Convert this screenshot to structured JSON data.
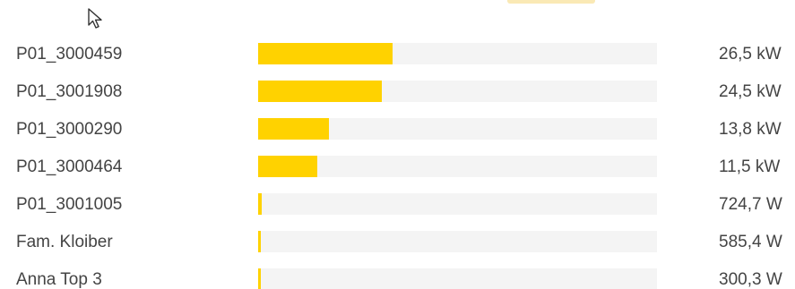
{
  "colors": {
    "bar_fill": "#ffd200",
    "bar_track": "#f4f4f4",
    "text": "#444444"
  },
  "items": [
    {
      "name": "P01_3000459",
      "power": "26,5 kW",
      "level": 0.338
    },
    {
      "name": "P01_3001908",
      "power": "24,5 kW",
      "level": 0.31
    },
    {
      "name": "P01_3000290",
      "power": "13,8 kW",
      "level": 0.178
    },
    {
      "name": "P01_3000464",
      "power": "11,5 kW",
      "level": 0.148
    },
    {
      "name": "P01_3001005",
      "power": "724,7 W",
      "level": 0.009
    },
    {
      "name": "Fam. Kloiber",
      "power": "585,4 W",
      "level": 0.007
    },
    {
      "name": "Anna Top 3",
      "power": "300,3 W",
      "level": 0.004
    }
  ]
}
